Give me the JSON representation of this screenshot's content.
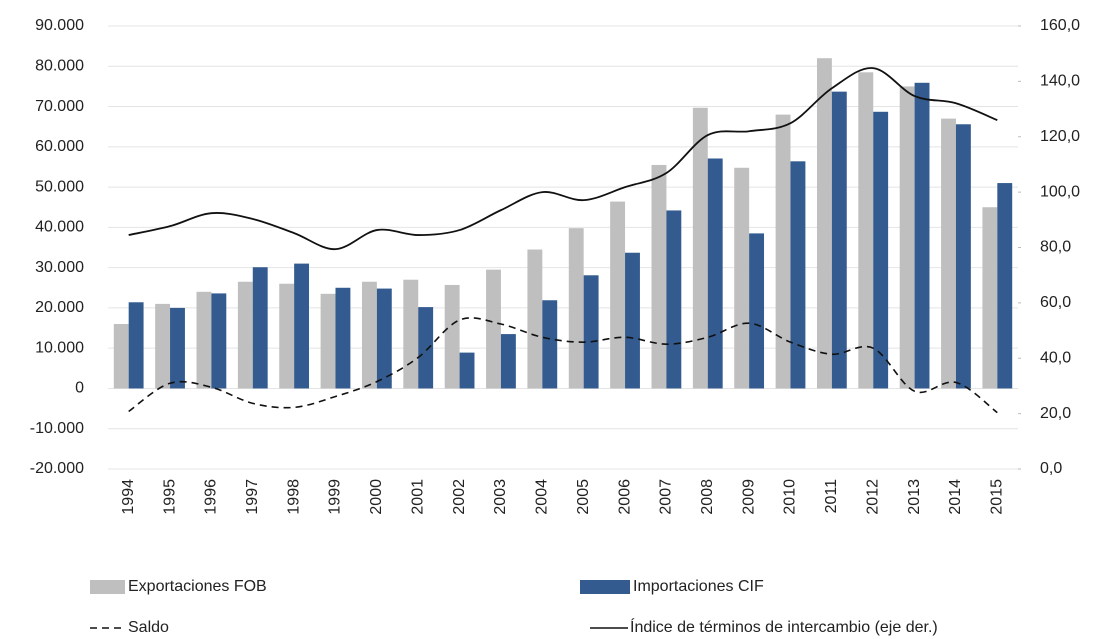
{
  "chart_data": {
    "type": "bar_line",
    "categories": [
      "1994",
      "1995",
      "1996",
      "1997",
      "1998",
      "1999",
      "2000",
      "2001",
      "2002",
      "2003",
      "2004",
      "2005",
      "2006",
      "2007",
      "2008",
      "2009",
      "2010",
      "2011",
      "2012",
      "2013",
      "2014",
      "2015"
    ],
    "series": [
      {
        "name": "Exportaciones FOB",
        "type": "bar",
        "color": "#bfbfbf",
        "values": [
          16000,
          21000,
          24000,
          26500,
          26000,
          23500,
          26500,
          27000,
          25700,
          29500,
          34500,
          39800,
          46400,
          55500,
          69700,
          54800,
          68000,
          82000,
          78500,
          75000,
          67000,
          45000
        ]
      },
      {
        "name": "Importaciones CIF",
        "type": "bar",
        "color": "#335b8f",
        "values": [
          21400,
          20000,
          23600,
          30100,
          31000,
          25000,
          24800,
          20200,
          8900,
          13500,
          21900,
          28100,
          33700,
          44200,
          57100,
          38500,
          56400,
          73700,
          68700,
          75900,
          65600,
          51000
        ]
      },
      {
        "name": "Saldo",
        "type": "line",
        "dashed": true,
        "color": "#111111",
        "values": [
          -5700,
          1300,
          300,
          -3700,
          -4700,
          -2000,
          1700,
          7700,
          17000,
          16000,
          12700,
          11500,
          12700,
          11000,
          12700,
          16200,
          11500,
          8500,
          10000,
          -700,
          1500,
          -6000
        ]
      },
      {
        "name": "Índice de términos de intercambio (eje der.)",
        "type": "line",
        "axis": "y2",
        "color": "#111111",
        "values": [
          84.5,
          87.7,
          92.4,
          90.3,
          85.2,
          79.4,
          86.3,
          84.5,
          86.3,
          93.5,
          100,
          97.1,
          101.8,
          106.9,
          120.6,
          122,
          124.9,
          137.5,
          144.8,
          134.7,
          132.1,
          126
        ]
      }
    ],
    "ylim": [
      -20000,
      90000
    ],
    "yticks": [
      {
        "value": -20000,
        "label": "-20.000"
      },
      {
        "value": -10000,
        "label": "-10.000"
      },
      0,
      {
        "value": 10000,
        "label": "10.000"
      },
      {
        "value": 20000,
        "label": "20.000"
      },
      {
        "value": 30000,
        "label": "30.000"
      },
      {
        "value": 40000,
        "label": "40.000"
      },
      {
        "value": 50000,
        "label": "50.000"
      },
      {
        "value": 60000,
        "label": "60.000"
      },
      {
        "value": 70000,
        "label": "70.000"
      },
      {
        "value": 80000,
        "label": "80.000"
      },
      {
        "value": 90000,
        "label": "90.000"
      }
    ],
    "y2lim": [
      0,
      160
    ],
    "y2ticks": [
      {
        "value": 0,
        "label": "0,0"
      },
      {
        "value": 20,
        "label": "20,0"
      },
      {
        "value": 40,
        "label": "40,0"
      },
      {
        "value": 60,
        "label": "60,0"
      },
      {
        "value": 80,
        "label": "80,0"
      },
      {
        "value": 100,
        "label": "100,0"
      },
      {
        "value": 120,
        "label": "120,0"
      },
      {
        "value": 140,
        "label": "140,0"
      },
      {
        "value": 160,
        "label": "160,0"
      }
    ],
    "grid": true,
    "legend": "bottom"
  }
}
